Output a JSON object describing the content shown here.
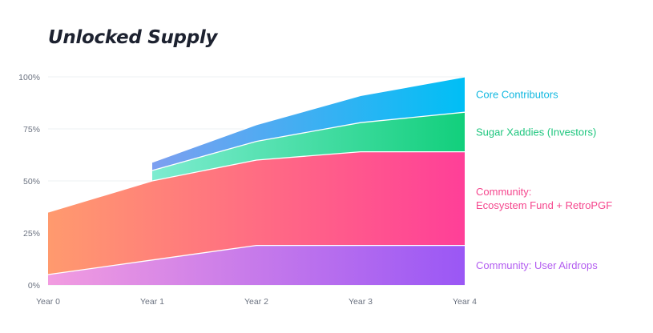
{
  "chart_data": {
    "type": "area",
    "title": "Unlocked Supply",
    "stacked": true,
    "categories": [
      "Year 0",
      "Year 1",
      "Year 2",
      "Year 3",
      "Year 4"
    ],
    "yticks": [
      "0%",
      "25%",
      "50%",
      "75%",
      "100%"
    ],
    "ylim": [
      0,
      100
    ],
    "grid": true,
    "legend_placement": "right",
    "series": [
      {
        "name": "Community: User Airdrops",
        "label_lines": [
          "Community: User Airdrops"
        ],
        "values": [
          5,
          12,
          19,
          19,
          19
        ],
        "color_start": "#f29ce0",
        "color_end": "#9a57f5",
        "label_color": "#b35df0"
      },
      {
        "name": "Community: Ecosystem Fund + RetroPGF",
        "label_lines": [
          "Community:",
          "Ecosystem Fund + RetroPGF"
        ],
        "values": [
          30,
          38,
          41,
          45,
          45
        ],
        "color_start": "#ff9a6e",
        "color_end": "#ff3f98",
        "label_color": "#f5478e"
      },
      {
        "name": "Sugar Xaddies (Investors)",
        "label_lines": [
          "Sugar Xaddies (Investors)"
        ],
        "values": [
          null,
          5,
          9,
          14,
          19
        ],
        "color_start": "#7eecd0",
        "color_end": "#12cf7c",
        "label_color": "#1ec67e"
      },
      {
        "name": "Core Contributors",
        "label_lines": [
          "Core Contributors"
        ],
        "values": [
          null,
          4,
          8,
          13,
          17
        ],
        "color_start": "#7d9ff0",
        "color_end": "#00bff5",
        "label_color": "#11b8e0"
      }
    ]
  }
}
